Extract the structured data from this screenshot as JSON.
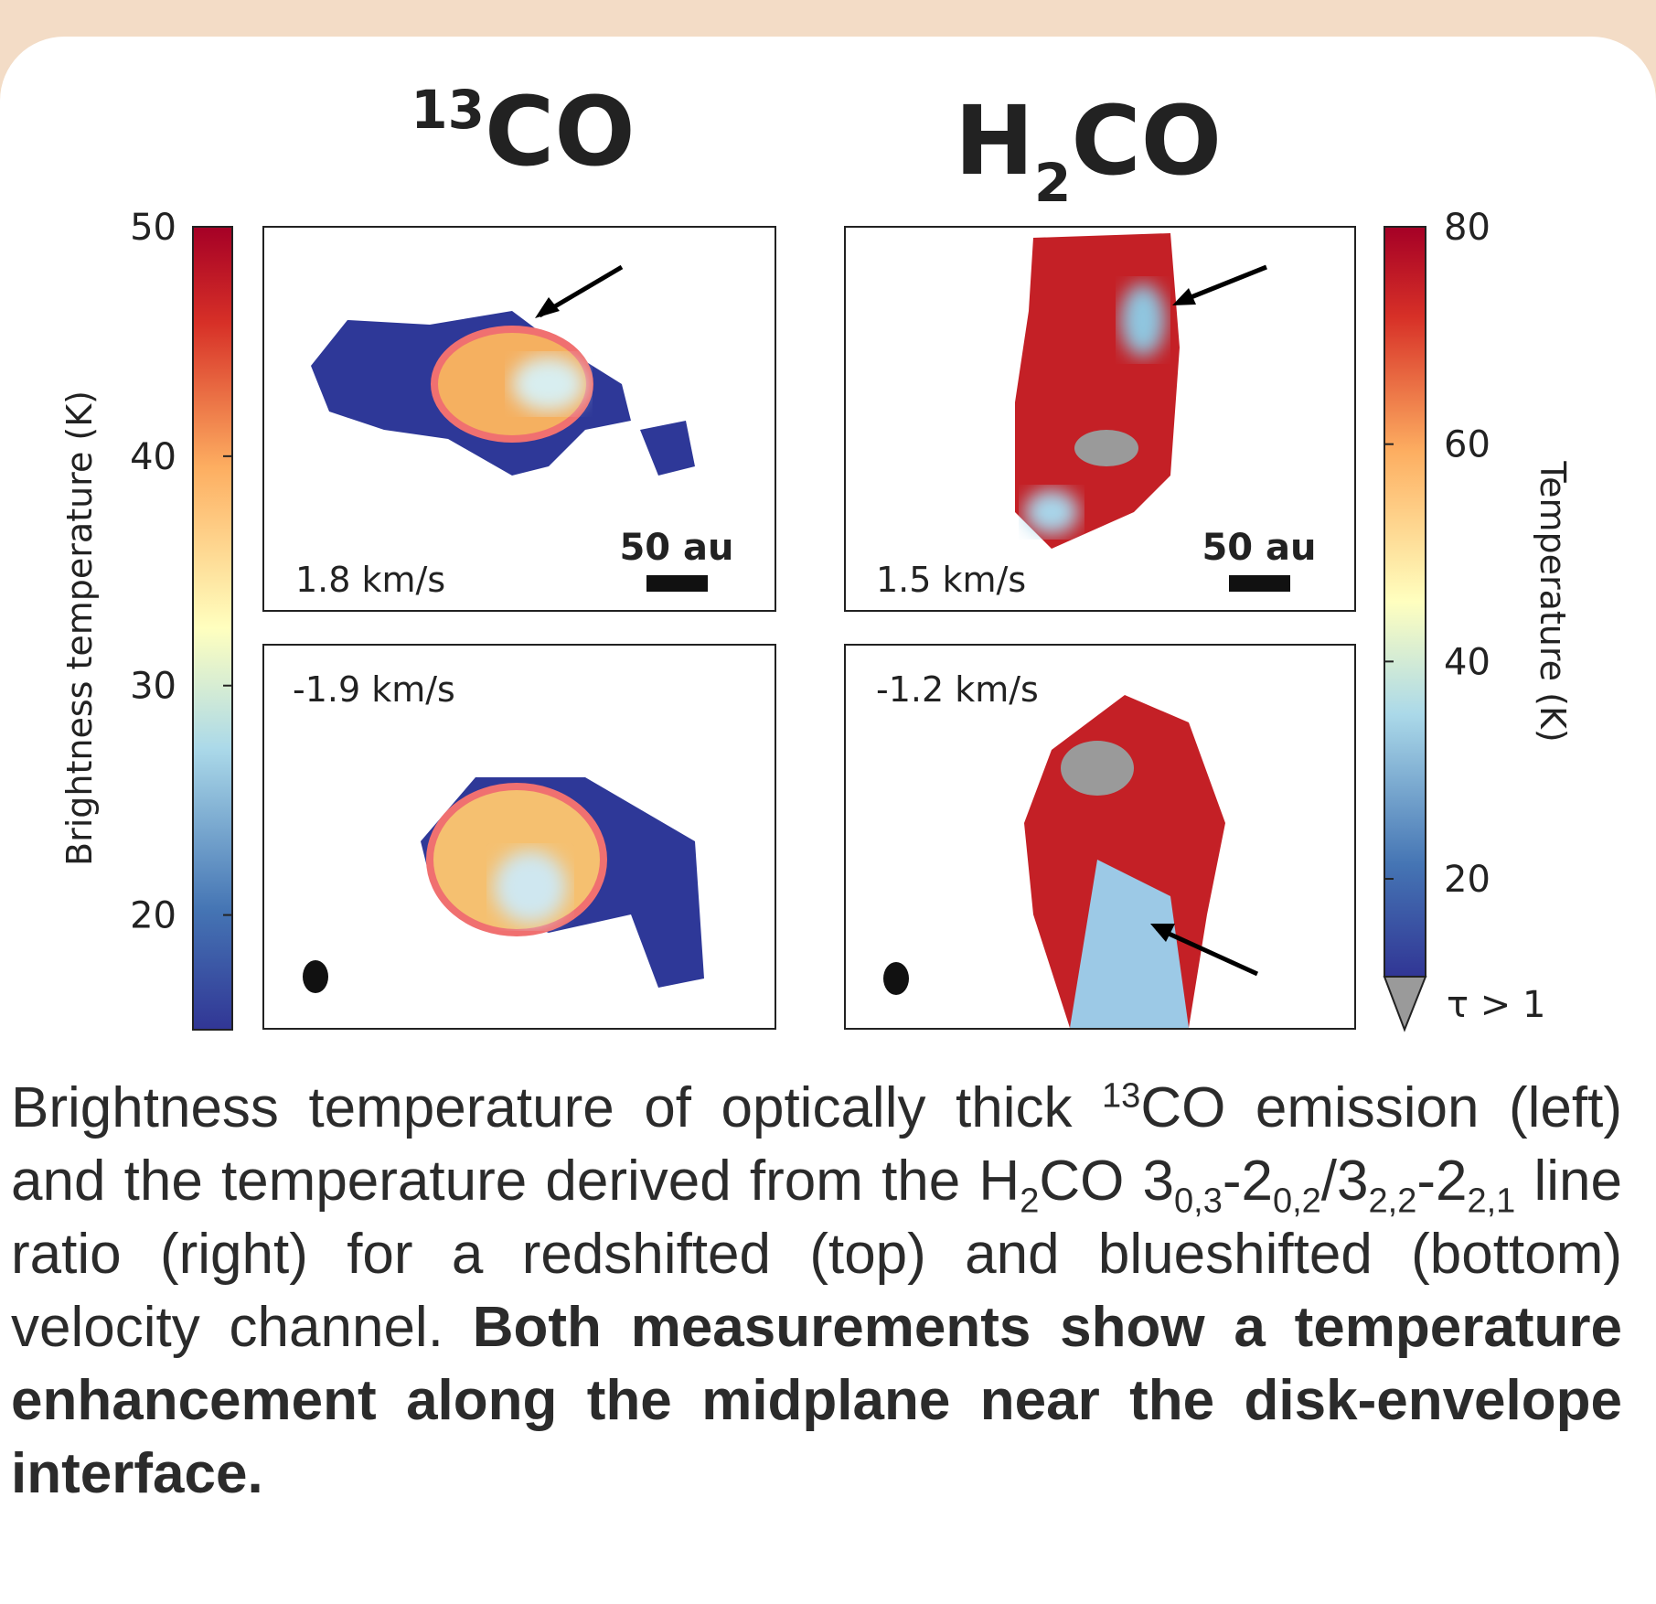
{
  "panel_titles": {
    "left": {
      "sup": "13",
      "text": "CO"
    },
    "right": {
      "text": "H",
      "sub": "2",
      "text2": "CO"
    }
  },
  "left_colorbar": {
    "label": "Brightness temperature (K)",
    "lim": [
      15,
      50
    ],
    "ticks": [
      20,
      30,
      40,
      50
    ]
  },
  "right_colorbar": {
    "label": "Temperature (K)",
    "lim": [
      11,
      80
    ],
    "ticks": [
      20,
      40,
      60,
      80
    ],
    "extend_label": "τ > 1"
  },
  "panels": [
    {
      "velocity": "1.8 km/s",
      "scalebar": "50 au"
    },
    {
      "velocity": "1.5 km/s",
      "scalebar": "50 au"
    },
    {
      "velocity": "-1.9 km/s"
    },
    {
      "velocity": "-1.2 km/s"
    }
  ],
  "caption": [
    {
      "text": "Brightness temperature of optically thick ",
      "style": "normal"
    },
    {
      "text": "13",
      "style": "sup"
    },
    {
      "text": "CO emission (left) and the temperature derived from the H",
      "style": "normal"
    },
    {
      "text": "2",
      "style": "sub"
    },
    {
      "text": "CO 3",
      "style": "normal"
    },
    {
      "text": "0,3",
      "style": "sub"
    },
    {
      "text": "-2",
      "style": "normal"
    },
    {
      "text": "0,2",
      "style": "sub"
    },
    {
      "text": "/3",
      "style": "normal"
    },
    {
      "text": "2,2",
      "style": "sub"
    },
    {
      "text": "-2",
      "style": "normal"
    },
    {
      "text": "2,1",
      "style": "sub"
    },
    {
      "text": " line ratio (right) for a redshifted (top) and blueshifted (bottom) velocity channel. ",
      "style": "normal"
    },
    {
      "text": "Both measurements show a temperature enhancement along the midplane near the disk-envelope interface.",
      "style": "bold"
    }
  ]
}
